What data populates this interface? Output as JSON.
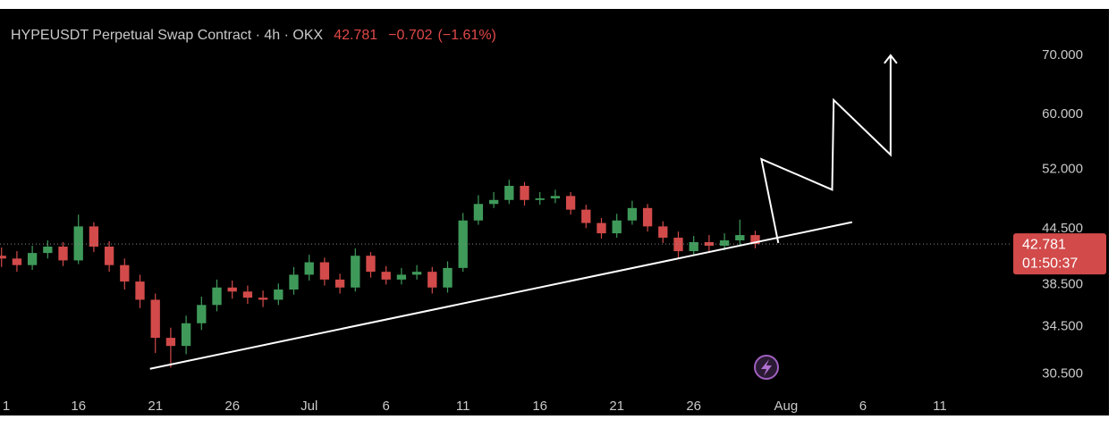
{
  "chart_data": {
    "type": "candlestick",
    "title": "HYPEUSDT Perpetual Swap Contract · 4h · OKX",
    "last_price": 42.781,
    "change": "−0.702",
    "change_pct": "(−1.61%)",
    "countdown": "01:50:37",
    "log_scale": true,
    "grid": false,
    "up_color": "#3f9a5a",
    "down_color": "#d24a4a",
    "xlim": [
      -0.1,
      65.6
    ],
    "xticks": [
      {
        "value": 0,
        "label": "1"
      },
      {
        "value": 5,
        "label": "16"
      },
      {
        "value": 10,
        "label": "21"
      },
      {
        "value": 15,
        "label": "26"
      },
      {
        "value": 20,
        "label": "Jul"
      },
      {
        "value": 25,
        "label": "6"
      },
      {
        "value": 30,
        "label": "11"
      },
      {
        "value": 35,
        "label": "16"
      },
      {
        "value": 40,
        "label": "21"
      },
      {
        "value": 45,
        "label": "26"
      },
      {
        "value": 51,
        "label": "Aug"
      },
      {
        "value": 56,
        "label": "6"
      },
      {
        "value": 61,
        "label": "11"
      }
    ],
    "ylim": [
      29,
      79
    ],
    "yticks": [
      {
        "value": 30.5,
        "label": "30.500"
      },
      {
        "value": 34.5,
        "label": "34.500"
      },
      {
        "value": 38.5,
        "label": "38.500"
      },
      {
        "value": 44.5,
        "label": "44.500"
      },
      {
        "value": 52,
        "label": "52.000"
      },
      {
        "value": 60,
        "label": "60.000"
      },
      {
        "value": 70,
        "label": "70.000"
      }
    ],
    "x": [
      0,
      1,
      2,
      3,
      4,
      5,
      6,
      7,
      8,
      9,
      10,
      11,
      12,
      13,
      14,
      15,
      16,
      17,
      18,
      19,
      20,
      21,
      22,
      23,
      24,
      25,
      26,
      27,
      28,
      29,
      30,
      31,
      32,
      33,
      34,
      35,
      36,
      37,
      38,
      39,
      40,
      41,
      42,
      43,
      44,
      45,
      46,
      47,
      48,
      49
    ],
    "open": [
      41.5,
      41.2,
      40.5,
      41.8,
      42.5,
      41.0,
      44.8,
      42.5,
      40.5,
      38.8,
      37.0,
      33.5,
      32.8,
      34.8,
      36.5,
      38.2,
      37.8,
      37.2,
      37.0,
      38.0,
      39.5,
      40.8,
      39.0,
      38.2,
      41.5,
      39.8,
      39.0,
      39.5,
      39.8,
      38.2,
      40.2,
      45.5,
      47.5,
      48.0,
      49.8,
      48.0,
      48.2,
      48.5,
      46.8,
      45.2,
      44.0,
      45.5,
      47.0,
      44.8,
      43.5,
      42.0,
      43.0,
      42.6,
      43.2,
      43.8
    ],
    "high": [
      42.4,
      42.0,
      42.6,
      43.2,
      43.0,
      46.2,
      45.3,
      43.1,
      41.2,
      39.5,
      37.6,
      34.4,
      35.5,
      37.3,
      39.0,
      38.9,
      38.4,
      37.9,
      38.6,
      40.3,
      41.6,
      41.3,
      39.6,
      42.3,
      41.9,
      40.4,
      40.2,
      40.5,
      40.3,
      40.9,
      46.4,
      48.6,
      49.0,
      50.6,
      50.3,
      49.0,
      49.3,
      49.0,
      47.4,
      45.8,
      46.3,
      47.9,
      47.5,
      45.4,
      44.2,
      43.7,
      43.8,
      44.0,
      45.6,
      44.3
    ],
    "low": [
      40.3,
      39.8,
      40.0,
      41.2,
      40.4,
      40.6,
      41.9,
      39.8,
      38.0,
      36.2,
      32.2,
      31.0,
      32.1,
      34.2,
      35.9,
      37.1,
      36.6,
      36.3,
      36.5,
      37.5,
      38.9,
      38.4,
      37.6,
      37.8,
      39.2,
      38.5,
      38.5,
      39.0,
      37.6,
      37.7,
      39.8,
      45.0,
      47.0,
      47.5,
      47.3,
      47.4,
      47.6,
      46.2,
      44.6,
      43.4,
      43.5,
      45.0,
      44.2,
      42.9,
      41.3,
      41.5,
      42.0,
      42.1,
      42.7,
      42.3
    ],
    "close": [
      41.2,
      40.5,
      41.8,
      42.5,
      41.0,
      44.8,
      42.5,
      40.5,
      38.8,
      37.0,
      33.5,
      32.8,
      34.8,
      36.5,
      38.2,
      37.8,
      37.2,
      37.0,
      38.0,
      39.5,
      40.8,
      39.0,
      38.2,
      41.5,
      39.8,
      39.0,
      39.5,
      39.8,
      38.2,
      40.2,
      45.5,
      47.5,
      48.0,
      49.8,
      48.0,
      48.2,
      48.5,
      46.8,
      45.2,
      44.0,
      45.5,
      47.0,
      44.8,
      43.5,
      42.0,
      43.0,
      42.6,
      43.2,
      43.8,
      42.781
    ],
    "trendline": {
      "x": [
        9.65,
        55.3
      ],
      "y": [
        30.9,
        45.3
      ],
      "color": "#ffffff"
    },
    "projection": {
      "x": [
        50.5,
        49.4,
        54.0,
        54.1,
        57.8,
        57.8
      ],
      "y": [
        42.9,
        53.4,
        49.3,
        62.3,
        54.0,
        70.0
      ],
      "color": "#ffffff"
    }
  }
}
